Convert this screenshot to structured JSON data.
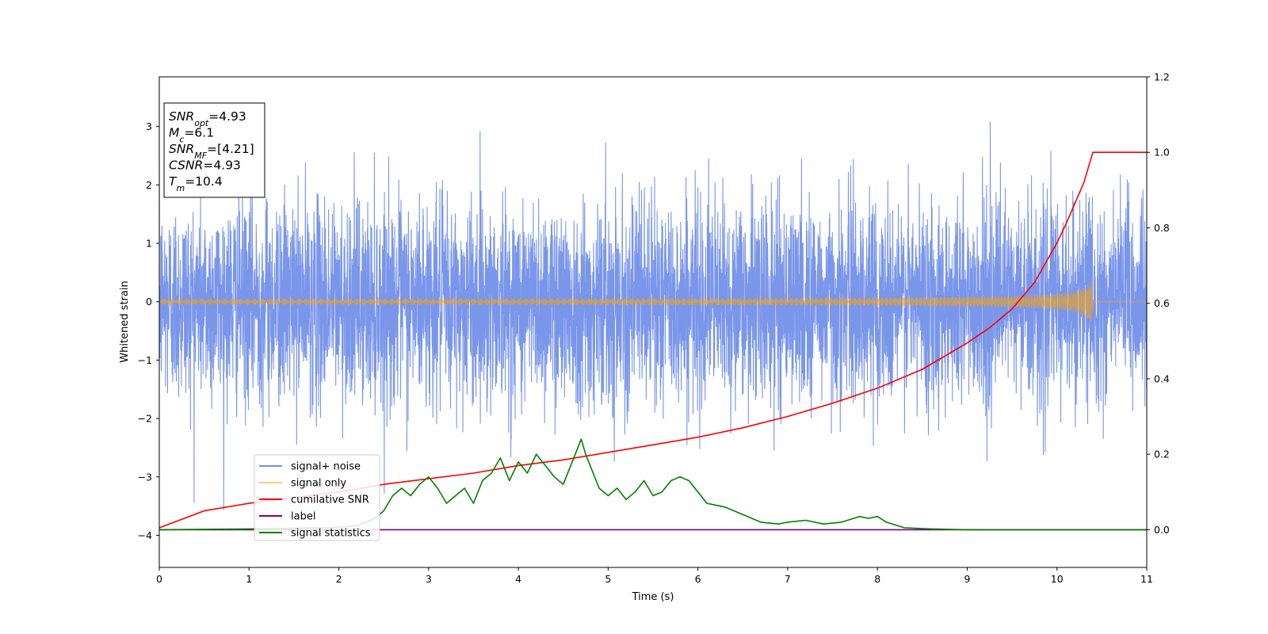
{
  "chart_data": {
    "type": "line",
    "title": "",
    "xlabel": "Time (s)",
    "ylabel": "Whitened strain",
    "xlim": [
      0,
      11
    ],
    "ylim_left": [
      -4.55,
      3.85
    ],
    "ylim_right": [
      -0.1,
      1.2
    ],
    "x_ticks": [
      0,
      1,
      2,
      3,
      4,
      5,
      6,
      7,
      8,
      9,
      10,
      11
    ],
    "y_ticks_left": [
      -4,
      -3,
      -2,
      -1,
      0,
      1,
      2,
      3
    ],
    "y_ticks_right": [
      "0.0",
      "0.2",
      "0.4",
      "0.6",
      "0.8",
      "1.0",
      "1.2"
    ],
    "grid": false,
    "legend_position": "lower-left",
    "annotation": [
      {
        "base": "SNR",
        "sub": "opt",
        "value": "=4.93"
      },
      {
        "base": "M",
        "sub": "c",
        "value": "=6.1"
      },
      {
        "base": "SNR",
        "sub": "MF",
        "value": "=[4.21]"
      },
      {
        "base": "CSNR",
        "sub": "",
        "value": "=4.93"
      },
      {
        "base": "T",
        "sub": "m",
        "value": "=10.4"
      }
    ],
    "series": [
      {
        "name": "signal+ noise",
        "color": "#4169e1",
        "axis": "left",
        "kind": "noise",
        "std": 0.85,
        "merger_time": 10.4
      },
      {
        "name": "signal only",
        "color": "#ffa500",
        "axis": "left",
        "kind": "chirp",
        "merger_time": 10.4,
        "amplitude_start": 0.02,
        "amplitude_peak": 0.45
      },
      {
        "name": "cumilative SNR",
        "color": "#ff0000",
        "axis": "right",
        "x": [
          0,
          0.5,
          1,
          1.5,
          2,
          2.5,
          3,
          3.5,
          4,
          4.5,
          5,
          5.5,
          6,
          6.5,
          7,
          7.5,
          8,
          8.5,
          9,
          9.25,
          9.5,
          9.75,
          10,
          10.1,
          10.2,
          10.3,
          10.4,
          11
        ],
        "y": [
          0.005,
          0.05,
          0.07,
          0.085,
          0.1,
          0.12,
          0.135,
          0.15,
          0.17,
          0.185,
          0.205,
          0.225,
          0.245,
          0.27,
          0.3,
          0.335,
          0.375,
          0.425,
          0.495,
          0.535,
          0.585,
          0.655,
          0.76,
          0.81,
          0.865,
          0.92,
          1.0,
          1.0
        ]
      },
      {
        "name": "label",
        "color": "#800080",
        "axis": "right",
        "x": [
          0,
          11
        ],
        "y": [
          0.0,
          0.0
        ]
      },
      {
        "name": "signal statistics",
        "color": "#008000",
        "axis": "right",
        "x": [
          0,
          1,
          1.9,
          2.2,
          2.4,
          2.5,
          2.6,
          2.7,
          2.8,
          2.9,
          3.0,
          3.1,
          3.2,
          3.3,
          3.4,
          3.5,
          3.6,
          3.7,
          3.8,
          3.9,
          4.0,
          4.1,
          4.2,
          4.3,
          4.4,
          4.5,
          4.6,
          4.7,
          4.75,
          4.8,
          4.9,
          5.0,
          5.1,
          5.2,
          5.3,
          5.4,
          5.5,
          5.6,
          5.7,
          5.8,
          5.9,
          6.0,
          6.1,
          6.3,
          6.5,
          6.7,
          6.9,
          7.0,
          7.2,
          7.4,
          7.6,
          7.8,
          7.9,
          8.0,
          8.1,
          8.3,
          8.6,
          9.0,
          10.0,
          11.0
        ],
        "y": [
          0.0,
          0.002,
          0.005,
          0.01,
          0.03,
          0.05,
          0.09,
          0.11,
          0.09,
          0.12,
          0.14,
          0.11,
          0.07,
          0.09,
          0.11,
          0.07,
          0.13,
          0.15,
          0.19,
          0.13,
          0.18,
          0.15,
          0.2,
          0.17,
          0.14,
          0.12,
          0.18,
          0.24,
          0.2,
          0.17,
          0.11,
          0.09,
          0.11,
          0.08,
          0.1,
          0.13,
          0.09,
          0.1,
          0.13,
          0.14,
          0.13,
          0.1,
          0.07,
          0.06,
          0.04,
          0.02,
          0.015,
          0.02,
          0.025,
          0.015,
          0.02,
          0.035,
          0.03,
          0.035,
          0.02,
          0.005,
          0.002,
          0.0,
          0.0,
          0.0
        ]
      }
    ]
  }
}
